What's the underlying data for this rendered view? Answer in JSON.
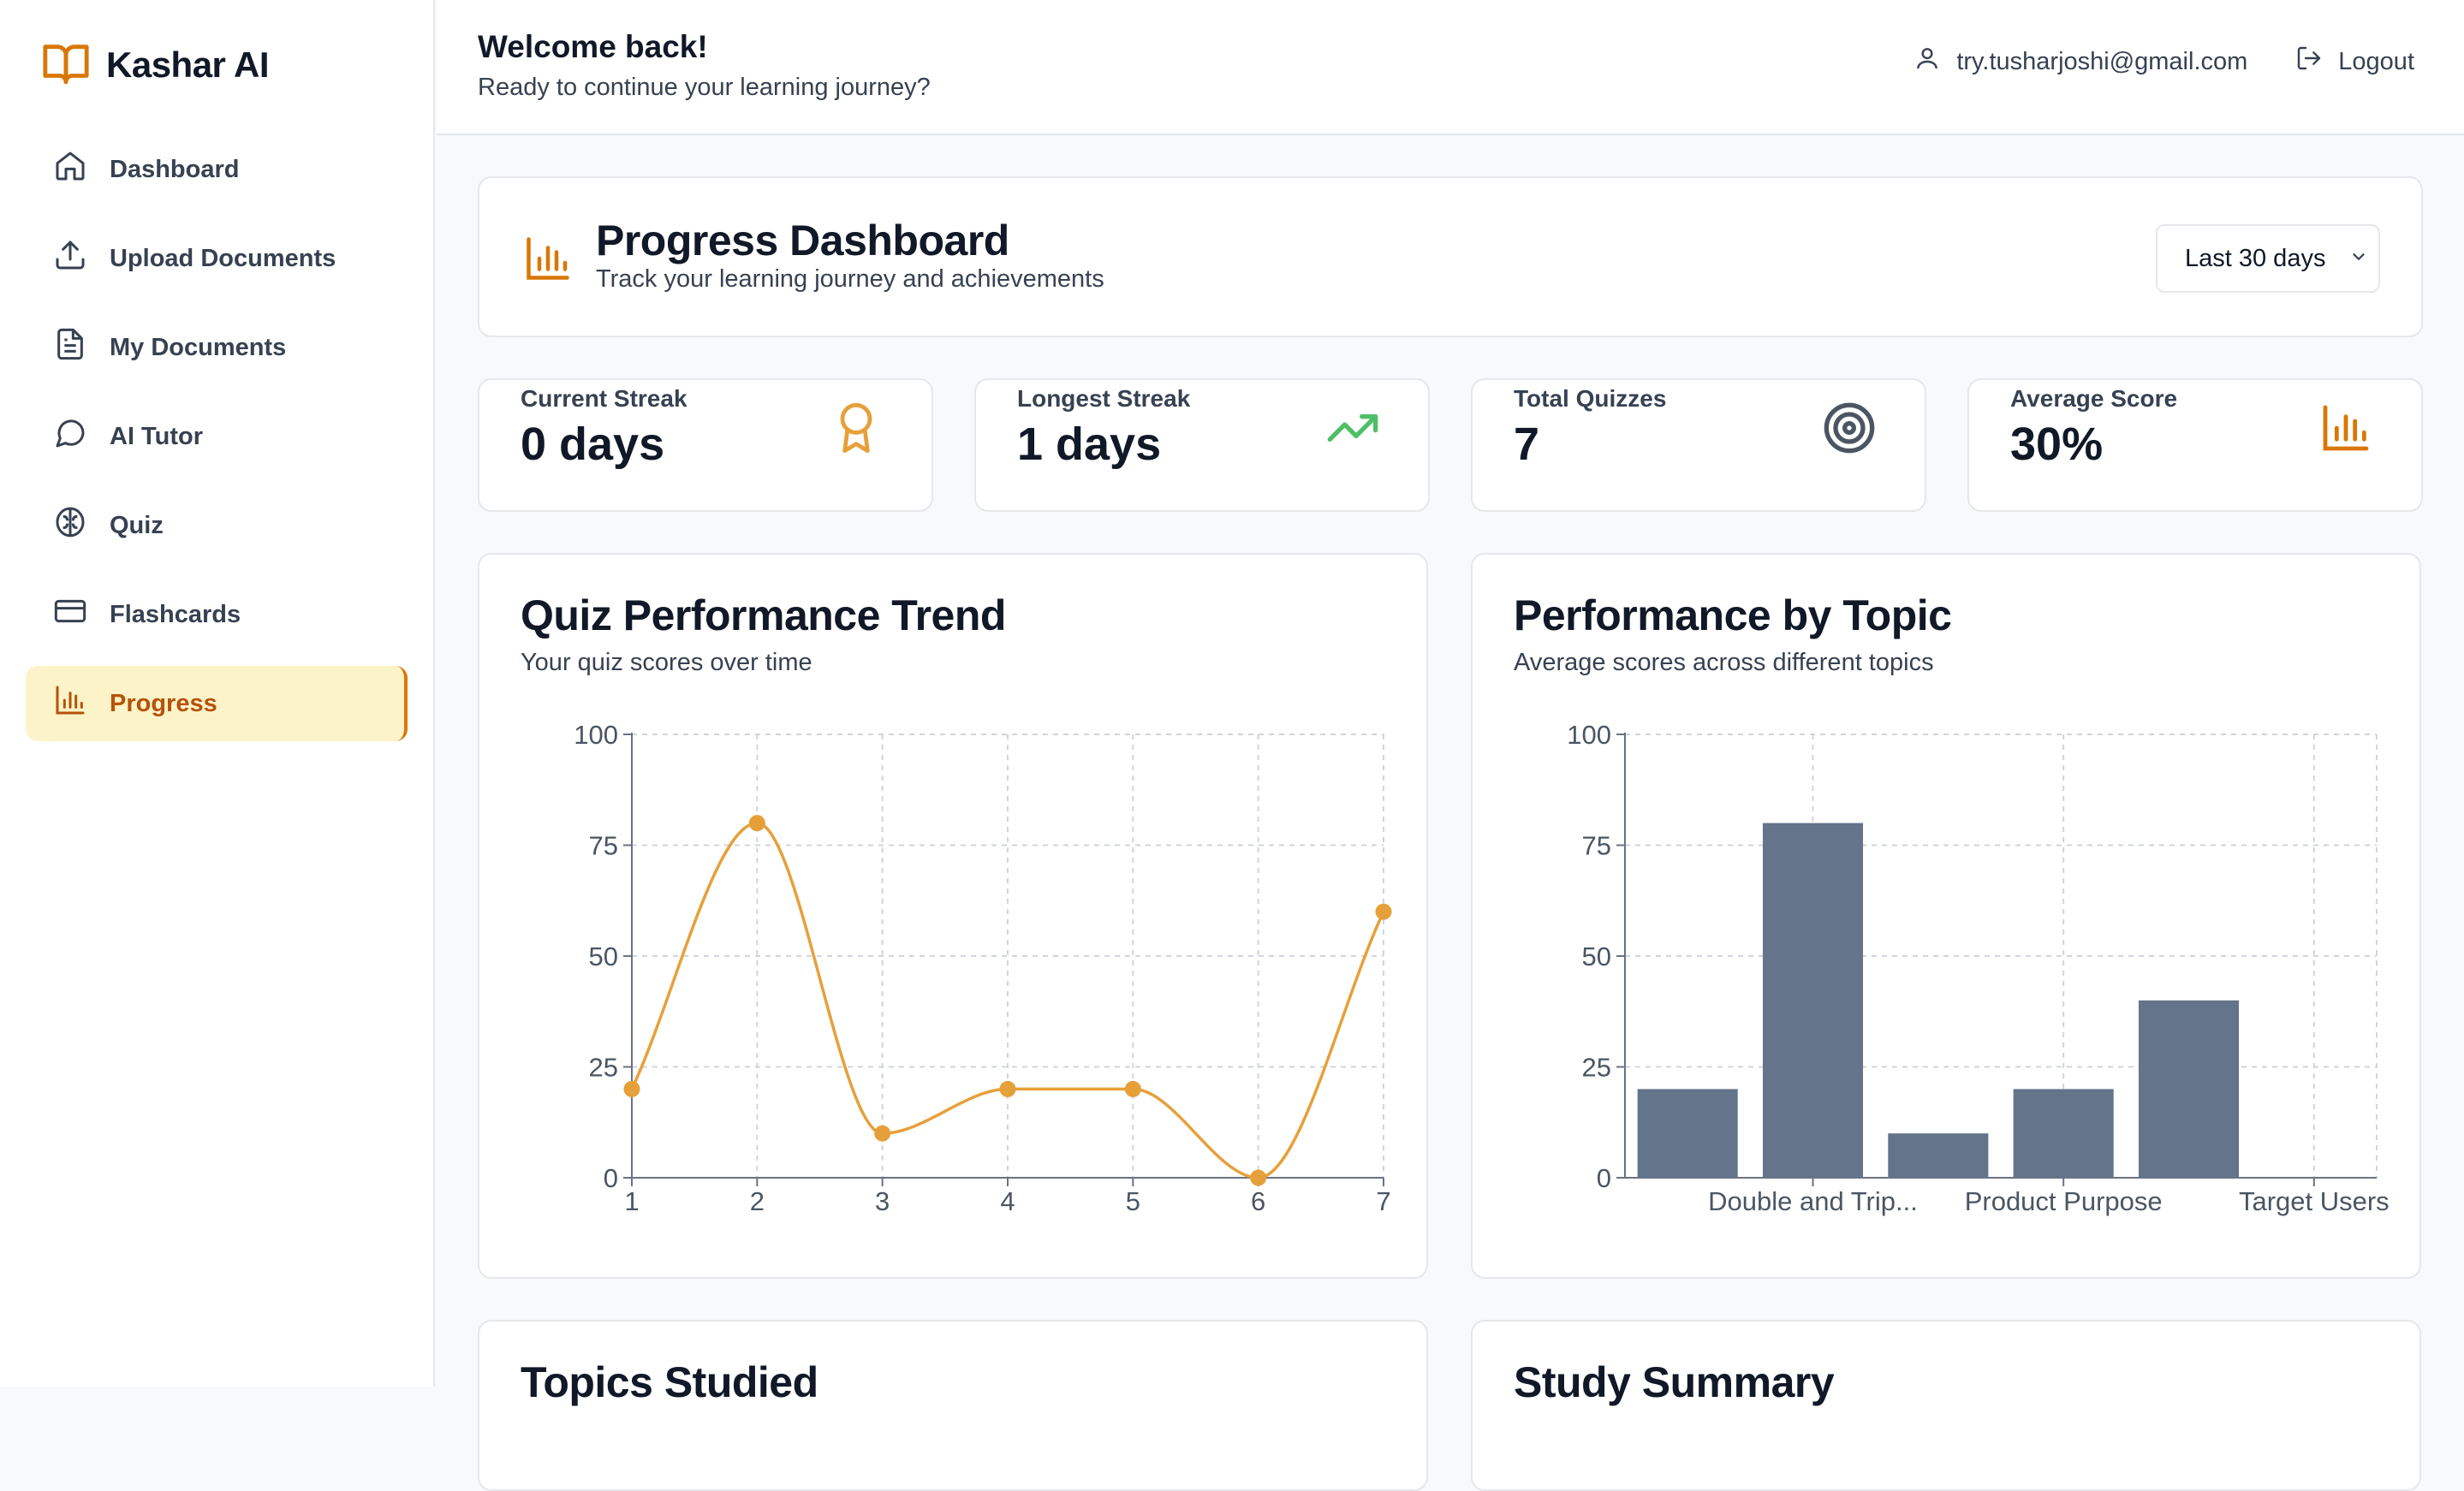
{
  "app": {
    "name": "Kashar AI"
  },
  "sidebar": {
    "items": [
      {
        "label": "Dashboard",
        "icon": "home-icon"
      },
      {
        "label": "Upload Documents",
        "icon": "upload-icon"
      },
      {
        "label": "My Documents",
        "icon": "document-icon"
      },
      {
        "label": "AI Tutor",
        "icon": "chat-icon"
      },
      {
        "label": "Quiz",
        "icon": "brain-icon"
      },
      {
        "label": "Flashcards",
        "icon": "card-icon"
      },
      {
        "label": "Progress",
        "icon": "bar-chart-icon",
        "active": true
      }
    ]
  },
  "header": {
    "title": "Welcome back!",
    "subtitle": "Ready to continue your learning journey?",
    "user_email": "try.tusharjoshi@gmail.com",
    "logout_label": "Logout"
  },
  "progress": {
    "title": "Progress Dashboard",
    "subtitle": "Track your learning journey and achievements",
    "range_selected": "Last 30 days"
  },
  "stats": [
    {
      "label": "Current Streak",
      "value": "0 days",
      "icon": "award-icon",
      "color": "#e6a03a"
    },
    {
      "label": "Longest Streak",
      "value": "1 days",
      "icon": "trending-up-icon",
      "color": "#4fbf67"
    },
    {
      "label": "Total Quizzes",
      "value": "7",
      "icon": "target-icon",
      "color": "#4b5563"
    },
    {
      "label": "Average Score",
      "value": "30%",
      "icon": "bar-chart-icon",
      "color": "#d97706"
    }
  ],
  "charts": {
    "trend": {
      "title": "Quiz Performance Trend",
      "subtitle": "Your quiz scores over time"
    },
    "topic": {
      "title": "Performance by Topic",
      "subtitle": "Average scores across different topics"
    }
  },
  "chart_data": [
    {
      "type": "line",
      "title": "Quiz Performance Trend",
      "x": [
        1,
        2,
        3,
        4,
        5,
        6,
        7
      ],
      "series": [
        {
          "values": [
            20,
            80,
            10,
            20,
            20,
            0,
            60
          ]
        }
      ],
      "ylim": [
        0,
        100
      ],
      "yticks": [
        0,
        25,
        50,
        75,
        100
      ],
      "grid": true,
      "color": "#e6a03a"
    },
    {
      "type": "bar",
      "title": "Performance by Topic",
      "categories": [
        "",
        "Double and Trip...",
        "",
        "Product Purpose",
        "",
        "Target Users"
      ],
      "values": [
        20,
        80,
        10,
        20,
        40,
        null
      ],
      "ylim": [
        0,
        100
      ],
      "yticks": [
        0,
        25,
        50,
        75,
        100
      ],
      "grid": true,
      "color": "#64748b"
    }
  ],
  "bottom": {
    "topics_title": "Topics Studied",
    "summary_title": "Study Summary"
  }
}
